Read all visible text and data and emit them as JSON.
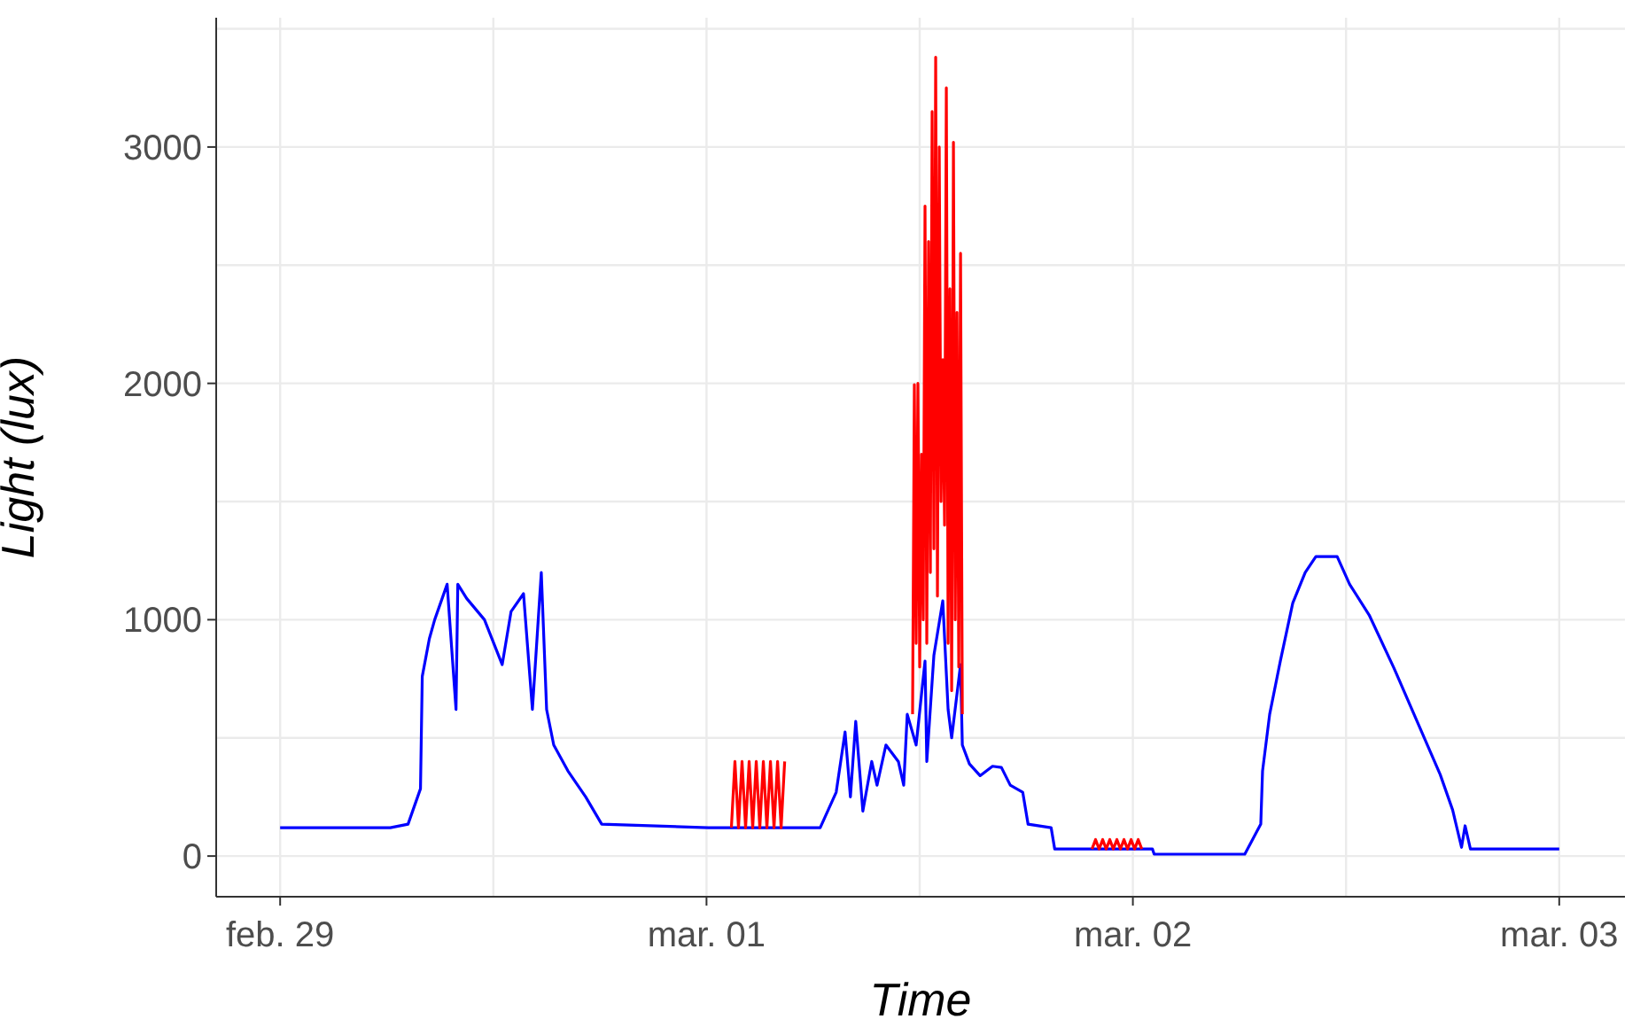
{
  "chart_data": {
    "type": "line",
    "xlabel": "Time",
    "ylabel": "Light (lux)",
    "xlim": [
      "--02-28T20:24",
      "--03-03T03:42"
    ],
    "ylim": [
      -172,
      3547
    ],
    "xticks": [
      {
        "value": "--02-29",
        "label": "feb. 29"
      },
      {
        "value": "--02-29T12:00",
        "label": null
      },
      {
        "value": "--03-01",
        "label": "mar. 01"
      },
      {
        "value": "--03-01T12:00",
        "label": null
      },
      {
        "value": "--03-02",
        "label": "mar. 02"
      },
      {
        "value": "--03-02T12:00",
        "label": null
      },
      {
        "value": "--03-03",
        "label": "mar. 03"
      }
    ],
    "yticks": [
      0,
      {
        "value": 500,
        "label": null
      },
      1000,
      {
        "value": 1500,
        "label": null
      },
      2000,
      {
        "value": 2500,
        "label": null
      },
      3000,
      {
        "value": 3500,
        "label": null
      }
    ],
    "grid": true,
    "legend": false,
    "marker": "none",
    "line_style": "solid",
    "series": [
      {
        "color": "#0000ff",
        "x": [
          "--02-29T00:00",
          "--02-29T06:12",
          "--02-29T07:12",
          "--02-29T07:54",
          "--02-29T08:00",
          "--02-29T08:24",
          "--02-29T08:42",
          "--02-29T09:24",
          "--02-29T09:54",
          "--02-29T10:00",
          "--02-29T10:30",
          "--02-29T11:30",
          "--02-29T12:30",
          "--02-29T13:00",
          "--02-29T13:42",
          "--02-29T14:12",
          "--02-29T14:42",
          "--02-29T15:00",
          "--02-29T15:24",
          "--02-29T16:12",
          "--02-29T17:12",
          "--02-29T18:06",
          "--03-01T00:06",
          "--03-01T06:24",
          "--03-01T07:18",
          "--03-01T07:48",
          "--03-01T08:06",
          "--03-01T08:24",
          "--03-01T08:48",
          "--03-01T09:18",
          "--03-01T09:36",
          "--03-01T10:06",
          "--03-01T10:48",
          "--03-01T11:06",
          "--03-01T11:18",
          "--03-01T11:48",
          "--03-01T12:18",
          "--03-01T12:24",
          "--03-01T12:48",
          "--03-01T13:18",
          "--03-01T13:36",
          "--03-01T13:48",
          "--03-01T14:18",
          "--03-01T14:24",
          "--03-01T14:48",
          "--03-01T15:24",
          "--03-01T16:06",
          "--03-01T16:36",
          "--03-01T17:06",
          "--03-01T17:48",
          "--03-01T18:06",
          "--03-01T19:24",
          "--03-01T19:36",
          "--03-02T01:06",
          "--03-02T01:12",
          "--03-02T06:18",
          "--03-02T07:12",
          "--03-02T07:18",
          "--03-02T07:42",
          "--03-02T08:18",
          "--03-02T09:00",
          "--03-02T09:42",
          "--03-02T10:18",
          "--03-02T11:30",
          "--03-02T12:12",
          "--03-02T13:18",
          "--03-02T14:42",
          "--03-02T16:00",
          "--03-02T17:18",
          "--03-02T18:00",
          "--03-02T18:30",
          "--03-02T18:42",
          "--03-02T19:00",
          "--03-03T00:00"
        ],
        "values": [
          120,
          120,
          135,
          285,
          760,
          920,
          1000,
          1150,
          620,
          1150,
          1090,
          1000,
          810,
          1035,
          1110,
          620,
          1200,
          620,
          470,
          360,
          250,
          135,
          120,
          120,
          270,
          525,
          250,
          570,
          190,
          400,
          300,
          470,
          400,
          300,
          600,
          470,
          825,
          400,
          850,
          1080,
          620,
          500,
          810,
          470,
          390,
          340,
          380,
          375,
          300,
          270,
          135,
          120,
          30,
          30,
          8,
          8,
          135,
          360,
          600,
          825,
          1070,
          1200,
          1267,
          1267,
          1150,
          1020,
          795,
          570,
          345,
          195,
          37,
          128,
          30,
          30
        ]
      },
      {
        "color": "#ff0000",
        "x": [
          "--03-01T01:24",
          "--03-01T01:36",
          "--03-01T01:48",
          "--03-01T02:00",
          "--03-01T02:12",
          "--03-01T02:24",
          "--03-01T02:36",
          "--03-01T02:48",
          "--03-01T03:00",
          "--03-01T03:12",
          "--03-01T03:24",
          "--03-01T03:36",
          "--03-01T03:48",
          "--03-01T04:00",
          "--03-01T04:12",
          "--03-01T04:24",
          "--03-01T04:30",
          "--03-01T11:36",
          "--03-01T11:42",
          "--03-01T11:48",
          "--03-01T11:54",
          "--03-01T12:00",
          "--03-01T12:06",
          "--03-01T12:12",
          "--03-01T12:18",
          "--03-01T12:24",
          "--03-01T12:30",
          "--03-01T12:36",
          "--03-01T12:42",
          "--03-01T12:48",
          "--03-01T12:54",
          "--03-01T13:00",
          "--03-01T13:06",
          "--03-01T13:12",
          "--03-01T13:18",
          "--03-01T13:24",
          "--03-01T13:30",
          "--03-01T13:36",
          "--03-01T13:42",
          "--03-01T13:48",
          "--03-01T13:54",
          "--03-01T14:00",
          "--03-01T14:06",
          "--03-01T14:12",
          "--03-01T14:18",
          "--03-01T14:24",
          "--03-01T14:30",
          "--03-01T21:42",
          "--03-01T21:54",
          "--03-01T22:06",
          "--03-01T22:18",
          "--03-01T22:30",
          "--03-01T22:42",
          "--03-01T22:54",
          "--03-01T23:06",
          "--03-01T23:18",
          "--03-01T23:30",
          "--03-01T23:42",
          "--03-01T23:54",
          "--03-02T00:06",
          "--03-02T00:18",
          "--03-02T00:30"
        ],
        "values": [
          120,
          400,
          120,
          400,
          120,
          400,
          120,
          400,
          120,
          400,
          120,
          400,
          120,
          400,
          120,
          400,
          null,
          600,
          1995,
          900,
          2000,
          800,
          1700,
          1000,
          2750,
          900,
          2600,
          1200,
          3150,
          1300,
          3380,
          1100,
          3000,
          1500,
          2100,
          1400,
          3250,
          900,
          2400,
          700,
          3020,
          1000,
          2300,
          800,
          2550,
          600,
          null,
          30,
          70,
          30,
          70,
          30,
          70,
          30,
          70,
          30,
          70,
          30,
          70,
          30,
          70,
          30
        ]
      }
    ]
  }
}
